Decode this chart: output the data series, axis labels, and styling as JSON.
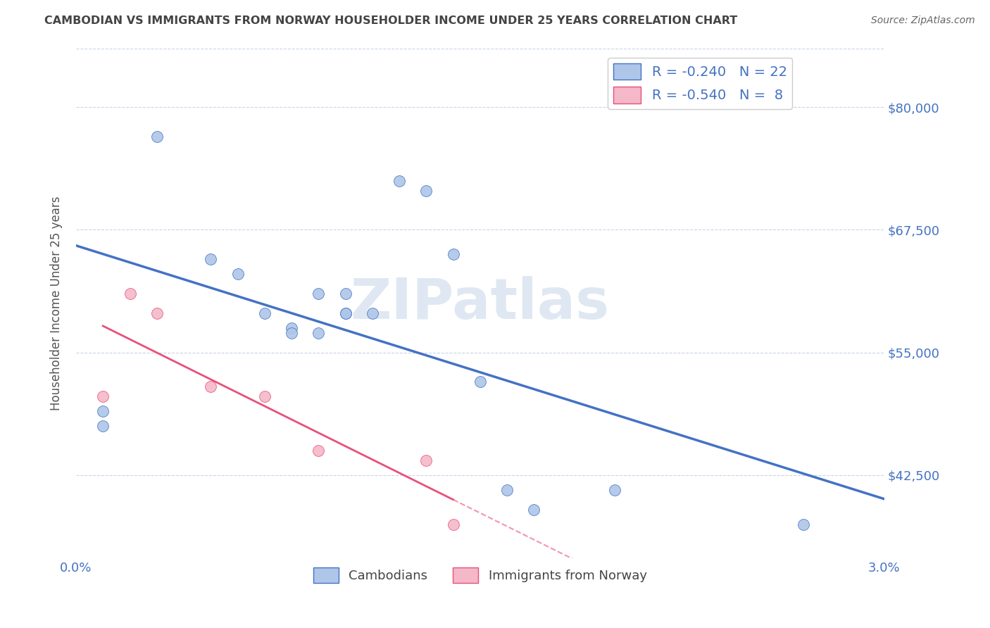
{
  "title": "CAMBODIAN VS IMMIGRANTS FROM NORWAY HOUSEHOLDER INCOME UNDER 25 YEARS CORRELATION CHART",
  "source": "Source: ZipAtlas.com",
  "ylabel": "Householder Income Under 25 years",
  "xmin": 0.0,
  "xmax": 0.03,
  "ymin": 34000,
  "ymax": 86000,
  "yticks": [
    42500,
    55000,
    67500,
    80000
  ],
  "ytick_labels": [
    "$42,500",
    "$55,000",
    "$67,500",
    "$80,000"
  ],
  "xtick_labels": [
    "0.0%",
    "3.0%"
  ],
  "watermark": "ZIPatlas",
  "cambodian_R": "-0.240",
  "cambodian_N": "22",
  "norway_R": "-0.540",
  "norway_N": "8",
  "cambodian_color": "#aec6e8",
  "norway_color": "#f4b8c8",
  "line_cambodian_color": "#4472c4",
  "line_norway_color": "#e8507a",
  "cambodian_points_x": [
    0.001,
    0.001,
    0.003,
    0.005,
    0.006,
    0.007,
    0.008,
    0.008,
    0.009,
    0.009,
    0.01,
    0.01,
    0.01,
    0.011,
    0.012,
    0.013,
    0.014,
    0.015,
    0.016,
    0.017,
    0.02,
    0.027
  ],
  "cambodian_points_y": [
    49000,
    47500,
    77000,
    64500,
    63000,
    59000,
    57500,
    57000,
    61000,
    57000,
    59000,
    59000,
    61000,
    59000,
    72500,
    71500,
    65000,
    52000,
    41000,
    39000,
    41000,
    37500
  ],
  "norway_points_x": [
    0.001,
    0.002,
    0.003,
    0.005,
    0.007,
    0.009,
    0.013,
    0.014
  ],
  "norway_points_y": [
    50500,
    61000,
    59000,
    51500,
    50500,
    45000,
    44000,
    37500
  ],
  "background_color": "#ffffff",
  "grid_color": "#c8d4e8",
  "title_color": "#444444",
  "axis_color": "#4472c4",
  "marker_size": 130
}
